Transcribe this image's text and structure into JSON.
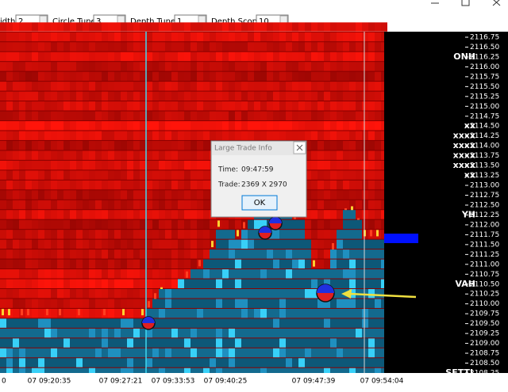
{
  "toolbar": {
    "fields": [
      {
        "label": "idth",
        "value": "2"
      },
      {
        "label": "Circle Tuner",
        "value": "3"
      },
      {
        "label": "Depth Tuner",
        "value": "1"
      },
      {
        "label": "Depth Scope",
        "value": "10"
      }
    ]
  },
  "price_axis": {
    "labels": [
      "2116.75",
      "2116.50",
      "2116.25",
      "2116.00",
      "2115.75",
      "2115.50",
      "2115.25",
      "2115.00",
      "2114.75",
      "2114.50",
      "2114.25",
      "2114.00",
      "2113.75",
      "2113.50",
      "2113.25",
      "2113.00",
      "2112.75",
      "2112.50",
      "2112.25",
      "2112.00",
      "2111.75",
      "2111.50",
      "2111.25",
      "2111.00",
      "2110.75",
      "2110.50",
      "2110.25",
      "2110.00",
      "2109.75",
      "2109.50",
      "2109.25",
      "2109.00",
      "2108.75",
      "2108.50",
      "2108.25"
    ]
  },
  "annotations": [
    "ONH",
    "xx",
    "xxxx",
    "xxxx",
    "xxxx",
    "xxxx",
    "xx",
    "YH",
    "VAH",
    "SETTL"
  ],
  "time_axis": {
    "labels": [
      "0",
      "07 09:20:35",
      "07 09:27:21",
      "07 09:33:53",
      "07 09:40:25",
      "07 09:47:39",
      "07 09:54:04"
    ]
  },
  "dialog": {
    "title": "Large Trade Info",
    "rows": [
      [
        "Time:",
        "09:47:59"
      ],
      [
        "Trade:",
        "2369 X 2970"
      ]
    ],
    "button": "OK"
  }
}
